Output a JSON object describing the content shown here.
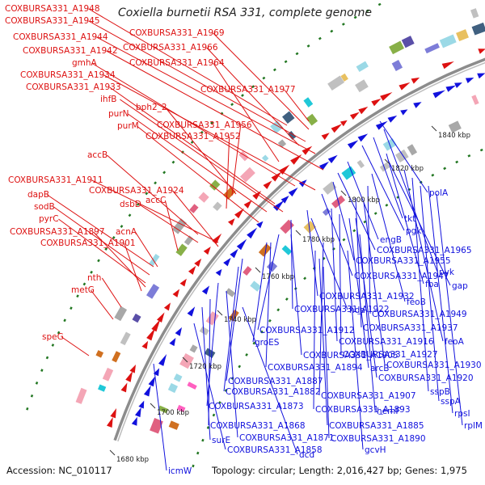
{
  "title": "Coxiella burnetii RSA 331, complete genome",
  "footer": {
    "accession": "Accession: NC_010117",
    "summary": "Topology: circular; Length: 2,016,427 bp; Genes: 1,975"
  },
  "colors": {
    "forward_strand": "#dd1111",
    "reverse_strand": "#1111dd",
    "backbone": "#8c8c8c",
    "dot_ring": "#227722"
  },
  "kbp_ticks": [
    "1680 kbp",
    "1700 kbp",
    "1720 kbp",
    "1740 kbp",
    "1760 kbp",
    "1780 kbp",
    "1800 kbp",
    "1820 kbp",
    "1840 kbp"
  ],
  "forward_labels": [
    "COXBURSA331_A1948",
    "COXBURSA331_A1945",
    "COXBURSA331_A1944",
    "COXBURSA331_A1942",
    "gmhA",
    "COXBURSA331_A1934",
    "COXBURSA331_A1933",
    "ihfB",
    "purN",
    "purM",
    "COXBURSA331_A1969",
    "COXBURSA331_A1966",
    "COXBURSA331_A1964",
    "COXBURSA331_A1977",
    "bph2_2",
    "COXBURSA331_A1956",
    "COXBURSA331_A1952",
    "accB",
    "COXBURSA331_A1911",
    "COXBURSA331_A1924",
    "dapB",
    "sodB",
    "accC",
    "dsbD",
    "pyrC",
    "COXBURSA331_A1897",
    "acnA",
    "COXBURSA331_A1901",
    "nth",
    "metG",
    "speG"
  ],
  "reverse_labels": [
    "polA",
    "tkt",
    "pgk",
    "engB",
    "COXBURSA331_A1965",
    "COXBURSA331_A1955",
    "pyk",
    "COXBURSA331_A1947",
    "fba",
    "gap",
    "feoB",
    "COXBURSA331_A1932",
    "hda",
    "COXBURSA331_A1922",
    "COXBURSA331_A1949",
    "COXBURSA331_A1912",
    "COXBURSA331_A1937",
    "groES",
    "COXBURSA331_A1916",
    "feoA",
    "COXBURSA331_A1905",
    "COXBURSA331_A1927",
    "arcB",
    "COXBURSA331_A1930",
    "COXBURSA331_A1894",
    "COXBURSA331_A1887",
    "COXBURSA331_A1920",
    "COXBURSA331_A1882",
    "sspB",
    "COXBURSA331_A1907",
    "sspA",
    "COXBURSA331_A1893",
    "hemF",
    "COXBURSA331_A1873",
    "rpsI",
    "COXBURSA331_A1868",
    "COXBURSA331_A1885",
    "rplM",
    "surE",
    "COXBURSA331_A1871",
    "COXBURSA331_A1890",
    "COXBURSA331_A1858",
    "gcvH",
    "dcd",
    "icmW"
  ]
}
